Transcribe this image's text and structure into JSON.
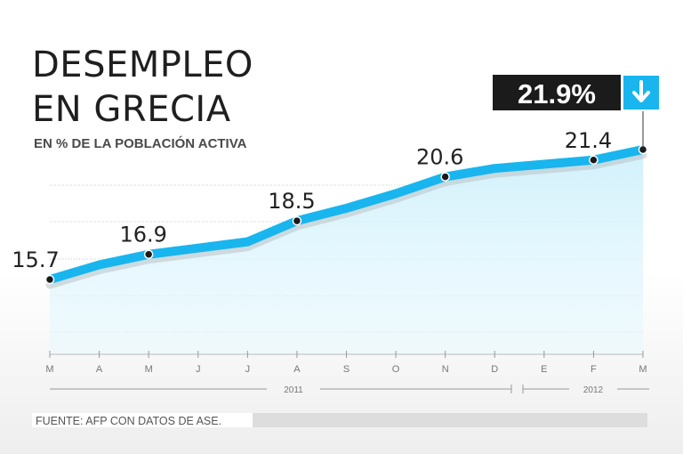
{
  "chart_data": {
    "type": "area",
    "title_lines": [
      "DESEMPLEO",
      "EN GRECIA"
    ],
    "subtitle": "EN % DE LA POBLACIÓN ACTIVA",
    "x": [
      "M",
      "A",
      "M",
      "J",
      "J",
      "A",
      "S",
      "O",
      "N",
      "D",
      "E",
      "F",
      "M"
    ],
    "year_labels": [
      "2011",
      "2012"
    ],
    "values": [
      15.7,
      16.4,
      16.9,
      17.2,
      17.5,
      18.5,
      19.1,
      19.8,
      20.6,
      21.0,
      21.2,
      21.4,
      21.9
    ],
    "labels": [
      {
        "index": 0,
        "text": "15.7"
      },
      {
        "index": 2,
        "text": "16.9"
      },
      {
        "index": 5,
        "text": "18.5"
      },
      {
        "index": 8,
        "text": "20.6"
      },
      {
        "index": 11,
        "text": "21.4"
      }
    ],
    "highlight": {
      "index": 12,
      "text": "21.9%",
      "icon": "down-arrow-icon"
    },
    "colors": {
      "line": "#19b5ee",
      "fill": "#d8f3fc",
      "badge": "#1b1b1b",
      "badge_icon_bg": "#19b5ee"
    },
    "source": "FUENTE: AFP CON DATOS DE ASE."
  }
}
